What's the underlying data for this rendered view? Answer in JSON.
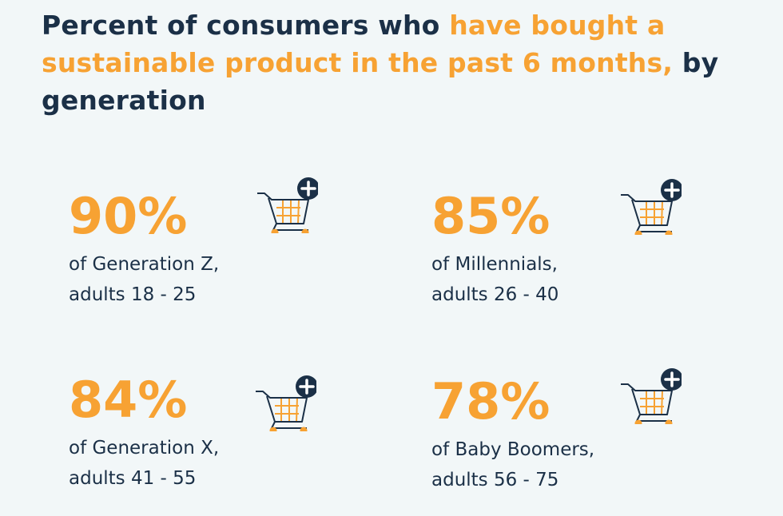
{
  "title": {
    "part1": "Percent of consumers who ",
    "highlight": "have bought a sustainable product in the past 6 months,",
    "part2": " by generation"
  },
  "colors": {
    "navy": "#1b3047",
    "orange": "#f7a233",
    "background": "#f2f7f8"
  },
  "stats": [
    {
      "percent": "90%",
      "line1": "of Generation Z,",
      "line2": "adults 18 - 25",
      "icon": "cart-plus-icon"
    },
    {
      "percent": "85%",
      "line1": "of Millennials,",
      "line2": "adults 26 - 40",
      "icon": "cart-plus-icon"
    },
    {
      "percent": "84%",
      "line1": "of Generation X,",
      "line2": "adults 41 - 55",
      "icon": "cart-plus-icon"
    },
    {
      "percent": "78%",
      "line1": "of Baby Boomers,",
      "line2": "adults 56 - 75",
      "icon": "cart-plus-icon"
    }
  ]
}
